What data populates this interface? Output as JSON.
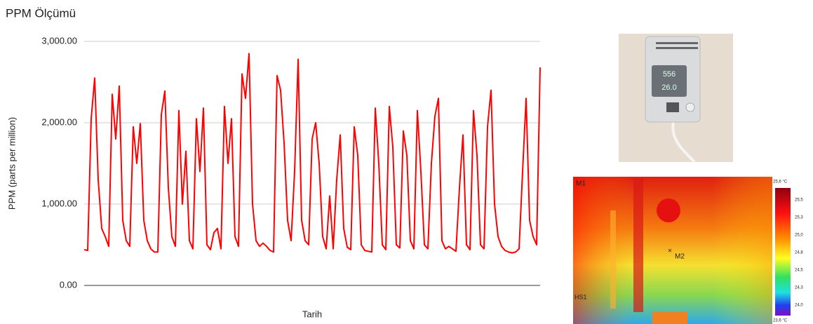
{
  "chart_data": {
    "type": "line",
    "title": "PPM Ölçümü",
    "y_label": "PPM (parts per million)",
    "x_label": "Tarih",
    "color": "#ff0000",
    "values": [
      440,
      430,
      2050,
      2550,
      1300,
      700,
      600,
      480,
      2350,
      1800,
      2450,
      800,
      550,
      480,
      1950,
      1500,
      1990,
      800,
      550,
      450,
      410,
      410,
      2100,
      2390,
      1200,
      600,
      480,
      2150,
      1000,
      1650,
      550,
      450,
      2050,
      1400,
      2180,
      500,
      440,
      650,
      700,
      450,
      2200,
      1500,
      2050,
      600,
      480,
      2600,
      2300,
      2850,
      1000,
      550,
      480,
      520,
      480,
      430,
      410,
      2580,
      2400,
      1750,
      800,
      550,
      1400,
      2780,
      800,
      550,
      500,
      1800,
      2000,
      1500,
      600,
      450,
      1100,
      450,
      1300,
      1850,
      700,
      470,
      440,
      1950,
      1600,
      500,
      430,
      420,
      410,
      2180,
      1500,
      500,
      440,
      2200,
      1700,
      500,
      460,
      1900,
      1600,
      550,
      450,
      2150,
      1400,
      500,
      450,
      1500,
      2080,
      2300,
      550,
      450,
      480,
      450,
      420,
      1200,
      1850,
      500,
      440,
      2150,
      1600,
      500,
      450,
      1950,
      2400,
      1000,
      600,
      480,
      430,
      410,
      400,
      410,
      450,
      1400,
      2300,
      800,
      600,
      500,
      2680
    ],
    "ylim": [
      0,
      3000
    ],
    "yticks": [
      {
        "value": 0,
        "label": "0.00"
      },
      {
        "value": 1000,
        "label": "1,000.00"
      },
      {
        "value": 2000,
        "label": "2,000.00"
      },
      {
        "value": 3000,
        "label": "3,000.00"
      }
    ],
    "grid": true
  },
  "device_display": [
    "556",
    "26.0"
  ],
  "thermal_image": {
    "markers": [
      "M1",
      "M2",
      "HS1"
    ],
    "scale_max": "25,6 °C",
    "scale_min": "23,6 °C",
    "scale_ticks": [
      "25,5",
      "25,3",
      "25,0",
      "24,8",
      "24,5",
      "24,3",
      "24,0"
    ]
  }
}
